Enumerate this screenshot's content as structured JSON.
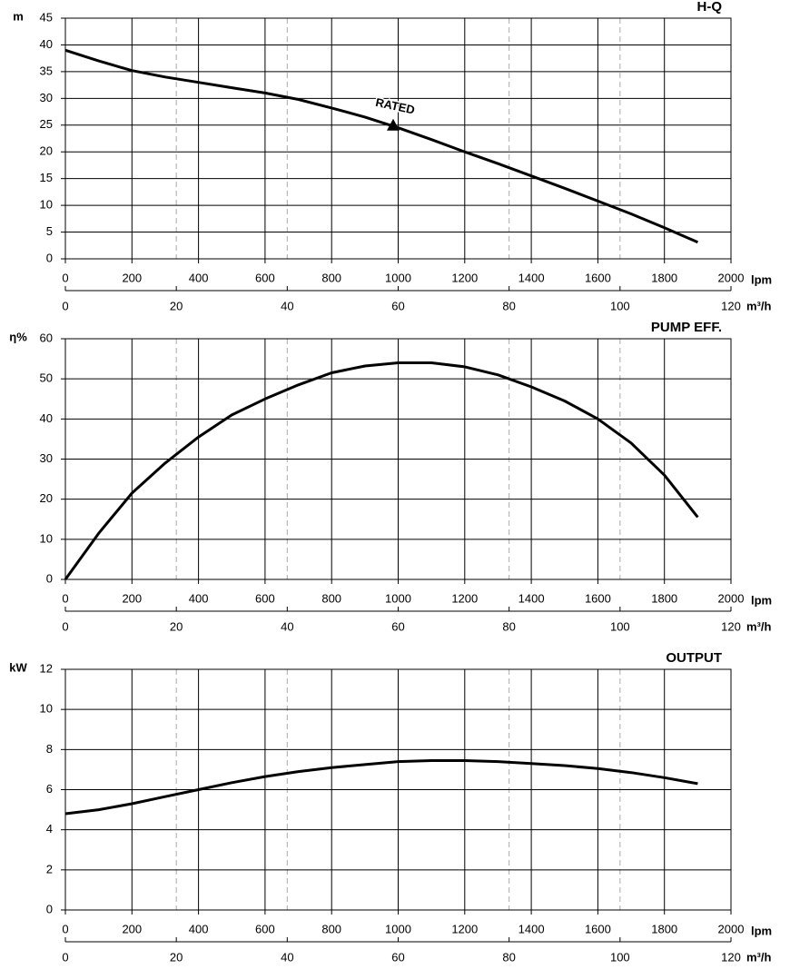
{
  "chart_data": [
    {
      "type": "line",
      "title": "H-Q",
      "ylabel": "m",
      "xlabel": "lpm",
      "x2label": "m³/h",
      "color": "#000000",
      "grid": true,
      "x": [
        0,
        100,
        200,
        300,
        400,
        500,
        600,
        700,
        800,
        900,
        1000,
        1100,
        1200,
        1300,
        1400,
        1500,
        1600,
        1700,
        1800,
        1900
      ],
      "values": [
        39,
        37,
        35.2,
        34,
        33,
        32,
        31,
        29.8,
        28.2,
        26.5,
        24.5,
        22.3,
        20,
        17.8,
        15.5,
        13.2,
        10.8,
        8.4,
        5.8,
        3.1
      ],
      "rated": {
        "label": "RATED",
        "x": 985,
        "y": 25
      },
      "xlim": [
        0,
        2000
      ],
      "xticks": [
        0,
        200,
        400,
        600,
        800,
        1000,
        1200,
        1400,
        1600,
        1800,
        2000
      ],
      "x2lim": [
        0,
        120
      ],
      "x2ticks": [
        0,
        20,
        40,
        60,
        80,
        100,
        120
      ],
      "ylim": [
        0,
        45
      ],
      "yticks": [
        0,
        5,
        10,
        15,
        20,
        25,
        30,
        35,
        40,
        45
      ]
    },
    {
      "type": "line",
      "title": "PUMP EFF.",
      "ylabel": "η%",
      "xlabel": "lpm",
      "x2label": "m³/h",
      "color": "#000000",
      "grid": true,
      "x": [
        0,
        100,
        200,
        300,
        400,
        500,
        600,
        700,
        800,
        900,
        1000,
        1100,
        1200,
        1300,
        1400,
        1500,
        1600,
        1700,
        1800,
        1900
      ],
      "values": [
        0,
        11.5,
        21.5,
        29,
        35.5,
        41,
        45,
        48.5,
        51.5,
        53.2,
        54,
        54,
        53,
        51,
        48,
        44.5,
        40,
        34,
        26,
        15.5
      ],
      "xlim": [
        0,
        2000
      ],
      "xticks": [
        0,
        200,
        400,
        600,
        800,
        1000,
        1200,
        1400,
        1600,
        1800,
        2000
      ],
      "x2lim": [
        0,
        120
      ],
      "x2ticks": [
        0,
        20,
        40,
        60,
        80,
        100,
        120
      ],
      "ylim": [
        0,
        60
      ],
      "yticks": [
        0,
        10,
        20,
        30,
        40,
        50,
        60
      ]
    },
    {
      "type": "line",
      "title": "OUTPUT",
      "ylabel": "kW",
      "xlabel": "lpm",
      "x2label": "m³/h",
      "color": "#000000",
      "grid": true,
      "x": [
        0,
        100,
        200,
        300,
        400,
        500,
        600,
        700,
        800,
        900,
        1000,
        1100,
        1200,
        1300,
        1400,
        1500,
        1600,
        1700,
        1800,
        1900
      ],
      "values": [
        4.8,
        5.0,
        5.3,
        5.65,
        6.0,
        6.35,
        6.65,
        6.9,
        7.1,
        7.25,
        7.4,
        7.45,
        7.45,
        7.4,
        7.3,
        7.2,
        7.05,
        6.85,
        6.6,
        6.3
      ],
      "xlim": [
        0,
        2000
      ],
      "xticks": [
        0,
        200,
        400,
        600,
        800,
        1000,
        1200,
        1400,
        1600,
        1800,
        2000
      ],
      "x2lim": [
        0,
        120
      ],
      "x2ticks": [
        0,
        20,
        40,
        60,
        80,
        100,
        120
      ],
      "ylim": [
        0,
        12
      ],
      "yticks": [
        0,
        2,
        4,
        6,
        8,
        10,
        12
      ]
    }
  ]
}
